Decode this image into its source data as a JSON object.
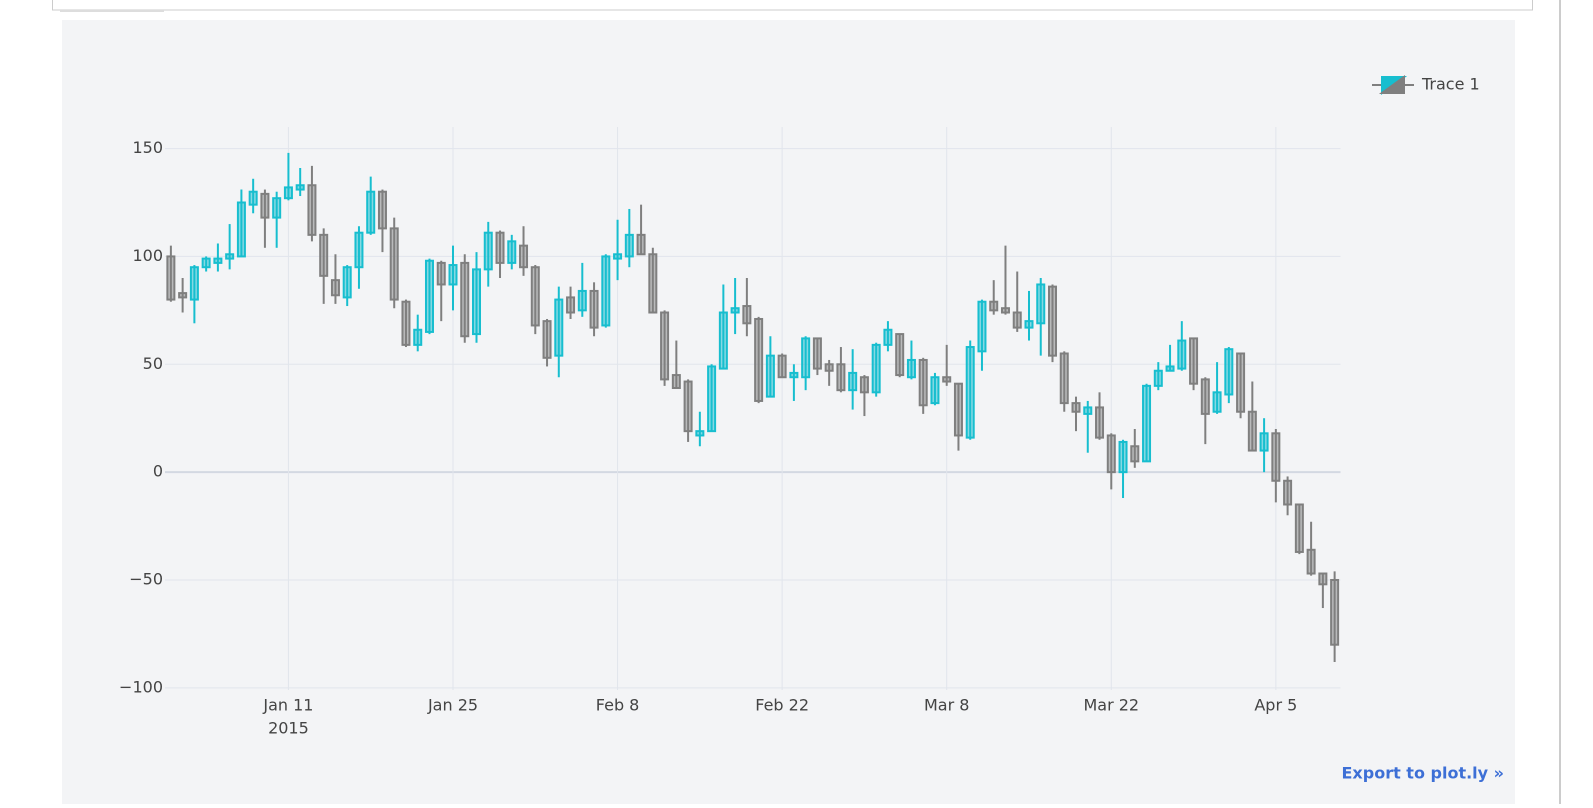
{
  "chart_data": {
    "type": "candlestick",
    "x": [
      "2015-01-01",
      "2015-01-02",
      "2015-01-03",
      "2015-01-04",
      "2015-01-05",
      "2015-01-06",
      "2015-01-07",
      "2015-01-08",
      "2015-01-09",
      "2015-01-10",
      "2015-01-11",
      "2015-01-12",
      "2015-01-13",
      "2015-01-14",
      "2015-01-15",
      "2015-01-16",
      "2015-01-17",
      "2015-01-18",
      "2015-01-19",
      "2015-01-20",
      "2015-01-21",
      "2015-01-22",
      "2015-01-23",
      "2015-01-24",
      "2015-01-25",
      "2015-01-26",
      "2015-01-27",
      "2015-01-28",
      "2015-01-29",
      "2015-01-30",
      "2015-01-31",
      "2015-02-01",
      "2015-02-02",
      "2015-02-03",
      "2015-02-04",
      "2015-02-05",
      "2015-02-06",
      "2015-02-07",
      "2015-02-08",
      "2015-02-09",
      "2015-02-10",
      "2015-02-11",
      "2015-02-12",
      "2015-02-13",
      "2015-02-14",
      "2015-02-15",
      "2015-02-16",
      "2015-02-17",
      "2015-02-18",
      "2015-02-19",
      "2015-02-20",
      "2015-02-21",
      "2015-02-22",
      "2015-02-23",
      "2015-02-24",
      "2015-02-25",
      "2015-02-26",
      "2015-02-27",
      "2015-02-28",
      "2015-03-01",
      "2015-03-02",
      "2015-03-03",
      "2015-03-04",
      "2015-03-05",
      "2015-03-06",
      "2015-03-07",
      "2015-03-08",
      "2015-03-09",
      "2015-03-10",
      "2015-03-11",
      "2015-03-12",
      "2015-03-13",
      "2015-03-14",
      "2015-03-15",
      "2015-03-16",
      "2015-03-17",
      "2015-03-18",
      "2015-03-19",
      "2015-03-20",
      "2015-03-21",
      "2015-03-22",
      "2015-03-23",
      "2015-03-24",
      "2015-03-25",
      "2015-03-26",
      "2015-03-27",
      "2015-03-28",
      "2015-03-29",
      "2015-03-30",
      "2015-03-31",
      "2015-04-01",
      "2015-04-02",
      "2015-04-03",
      "2015-04-04",
      "2015-04-05",
      "2015-04-06",
      "2015-04-07",
      "2015-04-08",
      "2015-04-09",
      "2015-04-10"
    ],
    "series": [
      {
        "name": "Trace 1",
        "increasing_color": "#17becf",
        "decreasing_color": "#7f7f7f",
        "open": [
          100,
          83,
          80,
          95,
          97,
          99,
          100,
          124,
          129,
          118,
          127,
          131,
          133,
          110,
          89,
          81,
          95,
          111,
          130,
          113,
          79,
          59,
          65,
          97,
          87,
          97,
          64,
          94,
          111,
          97,
          105,
          95,
          70,
          54,
          81,
          75,
          84,
          68,
          99,
          100,
          110,
          101,
          74,
          45,
          42,
          17,
          19,
          48,
          74,
          77,
          71,
          35,
          54,
          44,
          44,
          62,
          50,
          50,
          38,
          44,
          37,
          59,
          64,
          44,
          52,
          32,
          44,
          41,
          16,
          56,
          79,
          76,
          74,
          67,
          69,
          86,
          55,
          32,
          27,
          30,
          17,
          0,
          12,
          5,
          40,
          47,
          48,
          62,
          43,
          28,
          36,
          55,
          28,
          10,
          18,
          -4,
          -15,
          -36,
          -47,
          -50
        ],
        "high": [
          105,
          90,
          96,
          100,
          106,
          115,
          131,
          136,
          131,
          130,
          148,
          141,
          142,
          113,
          101,
          96,
          114,
          137,
          131,
          118,
          80,
          73,
          99,
          98,
          105,
          101,
          102,
          116,
          112,
          110,
          114,
          96,
          71,
          86,
          86,
          97,
          88,
          101,
          117,
          122,
          124,
          104,
          75,
          61,
          43,
          28,
          50,
          87,
          90,
          90,
          72,
          63,
          55,
          50,
          63,
          62,
          52,
          58,
          57,
          45,
          60,
          70,
          64,
          61,
          53,
          46,
          59,
          41,
          61,
          80,
          89,
          105,
          93,
          84,
          90,
          87,
          56,
          35,
          33,
          37,
          18,
          15,
          20,
          41,
          51,
          59,
          70,
          62,
          44,
          51,
          58,
          55,
          42,
          25,
          20,
          -2,
          -15,
          -23,
          -47,
          -46
        ],
        "low": [
          79,
          74,
          69,
          93,
          93,
          94,
          100,
          120,
          104,
          104,
          126,
          128,
          107,
          78,
          78,
          77,
          85,
          110,
          102,
          76,
          58,
          56,
          64,
          70,
          75,
          60,
          60,
          86,
          90,
          94,
          91,
          64,
          49,
          44,
          71,
          72,
          63,
          67,
          89,
          95,
          101,
          74,
          40,
          39,
          14,
          12,
          19,
          48,
          64,
          63,
          32,
          35,
          44,
          33,
          38,
          45,
          40,
          37,
          29,
          26,
          35,
          56,
          44,
          43,
          27,
          31,
          40,
          10,
          15,
          47,
          73,
          73,
          65,
          61,
          54,
          51,
          28,
          19,
          9,
          15,
          -8,
          -12,
          2,
          5,
          38,
          47,
          47,
          38,
          13,
          27,
          32,
          25,
          10,
          0,
          -14,
          -20,
          -38,
          -48,
          -63,
          -88
        ],
        "close": [
          80,
          81,
          95,
          99,
          99,
          101,
          125,
          130,
          118,
          127,
          132,
          133,
          110,
          91,
          82,
          95,
          111,
          130,
          113,
          80,
          59,
          66,
          98,
          87,
          96,
          63,
          94,
          111,
          97,
          107,
          95,
          68,
          53,
          80,
          74,
          84,
          67,
          100,
          101,
          110,
          101,
          74,
          43,
          39,
          19,
          19,
          49,
          74,
          76,
          69,
          33,
          54,
          44,
          46,
          62,
          48,
          47,
          38,
          46,
          37,
          59,
          66,
          45,
          52,
          31,
          44,
          42,
          17,
          58,
          79,
          75,
          74,
          67,
          70,
          87,
          54,
          32,
          28,
          30,
          16,
          0,
          14,
          5,
          40,
          47,
          49,
          61,
          41,
          27,
          37,
          57,
          28,
          10,
          18,
          -4,
          -15,
          -37,
          -47,
          -52,
          -80
        ]
      }
    ],
    "xlim": [
      "2014-12-31 12:00",
      "2015-04-10 12:00"
    ],
    "xticks": [
      {
        "value": "2015-01-11",
        "label": "Jan 11"
      },
      {
        "value": "2015-01-25",
        "label": "Jan 25"
      },
      {
        "value": "2015-02-08",
        "label": "Feb 8"
      },
      {
        "value": "2015-02-22",
        "label": "Feb 22"
      },
      {
        "value": "2015-03-08",
        "label": "Mar 8"
      },
      {
        "value": "2015-03-22",
        "label": "Mar 22"
      },
      {
        "value": "2015-04-05",
        "label": "Apr 5"
      }
    ],
    "x_year_label": "2015",
    "ylim": [
      -101,
      160
    ],
    "yticks": [
      {
        "value": -100,
        "label": "−100"
      },
      {
        "value": -50,
        "label": "−50"
      },
      0,
      50,
      100,
      150
    ],
    "grid": true,
    "legend": "top-right"
  },
  "export_link": "Export to plot.ly »"
}
